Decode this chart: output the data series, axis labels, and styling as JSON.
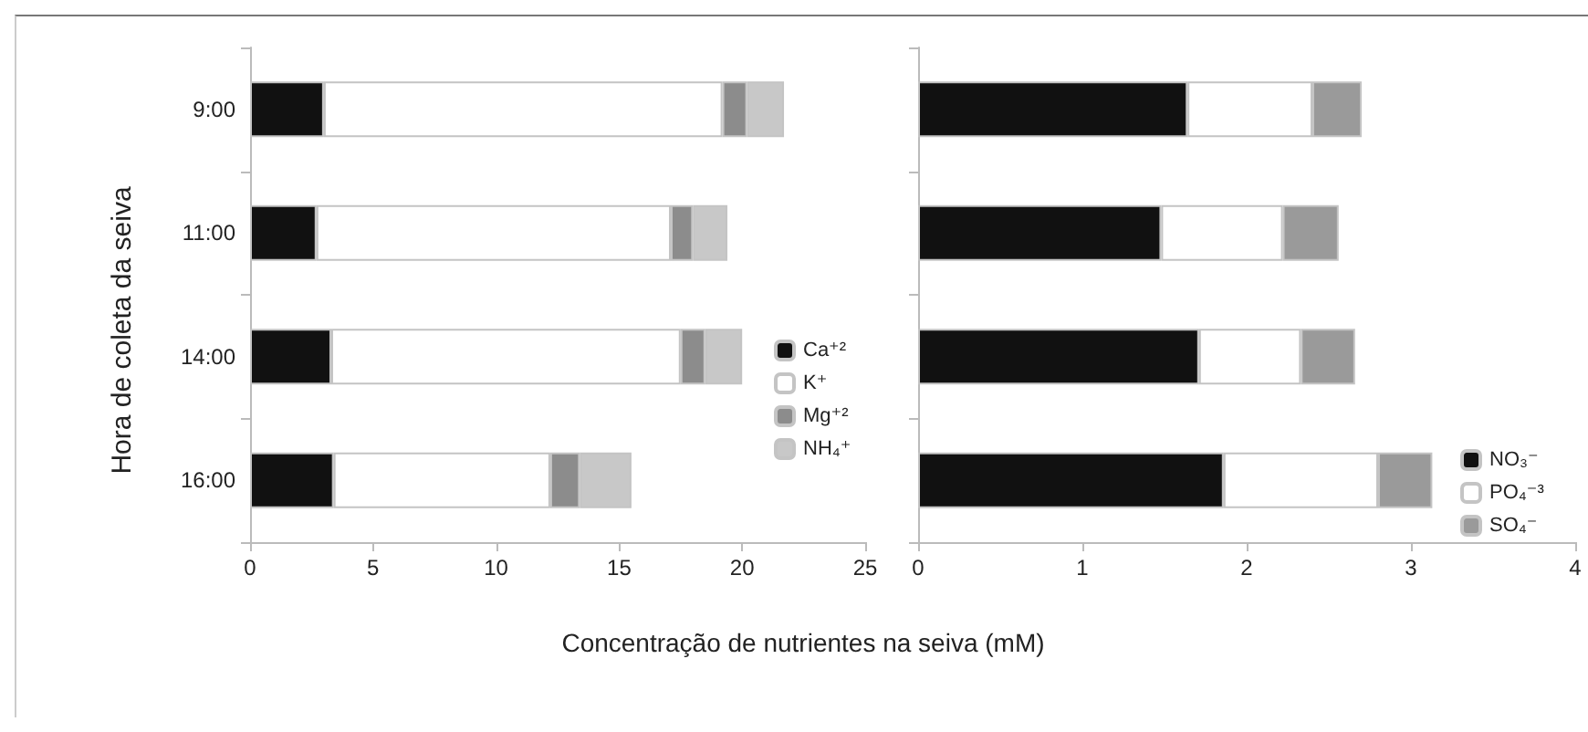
{
  "chart_data": [
    {
      "type": "bar",
      "orientation": "horizontal",
      "stacked": true,
      "ylabel": "Hora de coleta da seiva",
      "xlabel": "Concentração de nutrientes na seiva (mM)",
      "categories": [
        "9:00",
        "11:00",
        "14:00",
        "16:00"
      ],
      "xlim": [
        0,
        25
      ],
      "xticks": [
        0,
        5,
        10,
        15,
        20,
        25
      ],
      "legend": "right",
      "series": [
        {
          "name": "Ca⁺²",
          "color": "#111111",
          "values": [
            3.0,
            2.7,
            3.3,
            3.4
          ]
        },
        {
          "name": "K⁺",
          "color": "#ffffff",
          "values": [
            16.2,
            14.4,
            14.2,
            8.8
          ]
        },
        {
          "name": "Mg⁺²",
          "color": "#8c8c8c",
          "values": [
            1.0,
            0.9,
            1.0,
            1.2
          ]
        },
        {
          "name": "NH₄⁺",
          "color": "#c8c8c8",
          "values": [
            1.5,
            1.4,
            1.5,
            2.1
          ]
        }
      ]
    },
    {
      "type": "bar",
      "orientation": "horizontal",
      "stacked": true,
      "categories": [
        null,
        null,
        null,
        null
      ],
      "xlim": [
        0,
        4
      ],
      "xticks": [
        0,
        1,
        2,
        3,
        4
      ],
      "tick_labels": "x",
      "legend": "bottom right",
      "series": [
        {
          "name": "NO₃⁻",
          "color": "#111111",
          "values": [
            1.64,
            1.48,
            1.71,
            1.86
          ]
        },
        {
          "name": "PO₄⁻³",
          "color": "#ffffff",
          "values": [
            0.76,
            0.74,
            0.62,
            0.94
          ]
        },
        {
          "name": "SO₄⁻",
          "color": "#9a9a9a",
          "values": [
            0.3,
            0.34,
            0.33,
            0.33
          ]
        }
      ]
    }
  ]
}
